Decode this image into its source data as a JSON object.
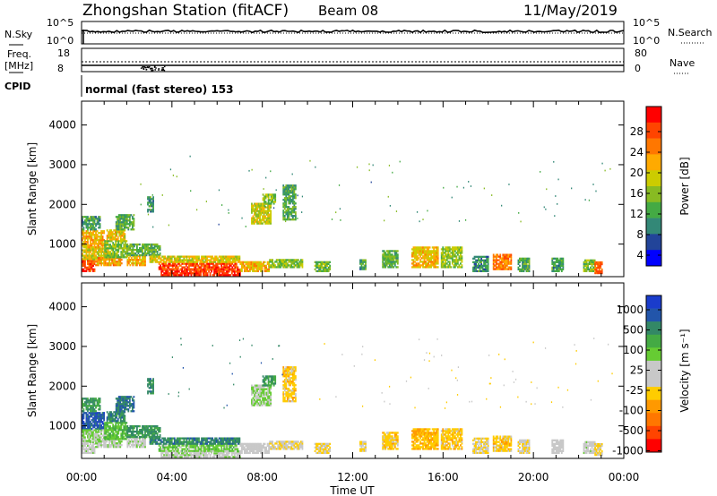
{
  "header": {
    "station": "Zhongshan Station (fitACF)",
    "beam": "Beam 08",
    "date": "11/May/2019"
  },
  "strip": {
    "nsky_label": "N.Sky",
    "nsky_ticks": [
      "10^5",
      "10^0"
    ],
    "nsearch_label": "N.Search",
    "nsearch_ticks": [
      "10^5",
      "10^0"
    ],
    "freq_label": "Freq.",
    "freq_unit": "[MHz]",
    "freq_ticks": [
      "18",
      "8"
    ],
    "nave_label": "Nave",
    "nave_ticks": [
      "80",
      "0"
    ],
    "cpid_label": "CPID",
    "cpid_text": "normal (fast stereo) 153"
  },
  "axes": {
    "ylabel": "Slant Range [km]",
    "xlabel": "Time UT",
    "yticks": [
      "4000",
      "3000",
      "2000",
      "1000"
    ],
    "xticks": [
      "00:00",
      "04:00",
      "08:00",
      "12:00",
      "16:00",
      "20:00",
      "00:00"
    ]
  },
  "power_scale": {
    "title": "Power [dB]",
    "ticks": [
      "28",
      "24",
      "20",
      "16",
      "12",
      "8",
      "4"
    ],
    "colors": [
      "#ff0000",
      "#ff4400",
      "#ff7700",
      "#ffaa00",
      "#cccc00",
      "#88bb22",
      "#44aa44",
      "#338877",
      "#224499",
      "#0000ff"
    ]
  },
  "velocity_scale": {
    "title": "Velocity [m s⁻¹]",
    "ticks": [
      "1000",
      "500",
      "100",
      "25",
      "-25",
      "-100",
      "-500",
      "-1000"
    ],
    "colors": [
      "#1a3ccc",
      "#2255aa",
      "#338866",
      "#44aa44",
      "#66cc33",
      "#c8c8c8",
      "#c8c8c8",
      "#ffcc00",
      "#ff9900",
      "#ff7700",
      "#ff4400",
      "#ff0000"
    ]
  },
  "chart_data": {
    "type": "heatmap",
    "x_range_hours": [
      0,
      24
    ],
    "y_range_km": [
      180,
      4600
    ],
    "panels": [
      {
        "name": "Power [dB]",
        "clim": [
          0,
          32
        ],
        "regions": [
          {
            "t": [
              0.0,
              0.6
            ],
            "r": [
              300,
              600
            ],
            "v": 27
          },
          {
            "t": [
              0.0,
              1.2
            ],
            "r": [
              600,
              900
            ],
            "v": 18
          },
          {
            "t": [
              0.0,
              1.0
            ],
            "r": [
              900,
              1350
            ],
            "v": 20
          },
          {
            "t": [
              0.0,
              0.8
            ],
            "r": [
              1350,
              1700
            ],
            "v": 10
          },
          {
            "t": [
              0.6,
              1.8
            ],
            "r": [
              450,
              650
            ],
            "v": 22
          },
          {
            "t": [
              1.0,
              2.0
            ],
            "r": [
              650,
              1100
            ],
            "v": 14
          },
          {
            "t": [
              1.1,
              1.9
            ],
            "r": [
              1100,
              1350
            ],
            "v": 19
          },
          {
            "t": [
              1.5,
              2.3
            ],
            "r": [
              1350,
              1750
            ],
            "v": 12
          },
          {
            "t": [
              2.0,
              2.8
            ],
            "r": [
              450,
              700
            ],
            "v": 21
          },
          {
            "t": [
              2.0,
              3.5
            ],
            "r": [
              700,
              1000
            ],
            "v": 12
          },
          {
            "t": [
              3.5,
              7.0
            ],
            "r": [
              200,
              350
            ],
            "v": 29
          },
          {
            "t": [
              3.4,
              6.9
            ],
            "r": [
              350,
              530
            ],
            "v": 27
          },
          {
            "t": [
              3.0,
              7.0
            ],
            "r": [
              530,
              680
            ],
            "v": 18
          },
          {
            "t": [
              7.0,
              8.3
            ],
            "r": [
              300,
              550
            ],
            "v": 20
          },
          {
            "t": [
              8.3,
              9.8
            ],
            "r": [
              400,
              620
            ],
            "v": 14
          },
          {
            "t": [
              7.5,
              8.4
            ],
            "r": [
              1500,
              2000
            ],
            "v": 17
          },
          {
            "t": [
              8.0,
              8.6
            ],
            "r": [
              2000,
              2250
            ],
            "v": 14
          },
          {
            "t": [
              8.9,
              9.5
            ],
            "r": [
              1600,
              2500
            ],
            "v": 11
          },
          {
            "t": [
              2.9,
              3.2
            ],
            "r": [
              1800,
              2200
            ],
            "v": 10
          },
          {
            "t": [
              10.3,
              11.0
            ],
            "r": [
              300,
              550
            ],
            "v": 13
          },
          {
            "t": [
              12.3,
              12.6
            ],
            "r": [
              350,
              600
            ],
            "v": 10
          },
          {
            "t": [
              13.3,
              14.0
            ],
            "r": [
              400,
              850
            ],
            "v": 12
          },
          {
            "t": [
              14.6,
              15.8
            ],
            "r": [
              400,
              900
            ],
            "v": 20
          },
          {
            "t": [
              15.9,
              16.8
            ],
            "r": [
              400,
              900
            ],
            "v": 15
          },
          {
            "t": [
              17.3,
              18.0
            ],
            "r": [
              300,
              700
            ],
            "v": 9
          },
          {
            "t": [
              18.2,
              19.0
            ],
            "r": [
              350,
              750
            ],
            "v": 24
          },
          {
            "t": [
              19.3,
              19.8
            ],
            "r": [
              300,
              650
            ],
            "v": 11
          },
          {
            "t": [
              20.8,
              21.3
            ],
            "r": [
              300,
              650
            ],
            "v": 10
          },
          {
            "t": [
              22.2,
              22.7
            ],
            "r": [
              300,
              600
            ],
            "v": 13
          },
          {
            "t": [
              22.7,
              23.0
            ],
            "r": [
              250,
              550
            ],
            "v": 26
          }
        ]
      },
      {
        "name": "Velocity [m s-1]",
        "clim": [
          -1200,
          1200
        ],
        "regions": [
          {
            "t": [
              0.0,
              1.0
            ],
            "r": [
              900,
              1350
            ],
            "v": 900
          },
          {
            "t": [
              0.0,
              0.6
            ],
            "r": [
              300,
              600
            ],
            "v": 80
          },
          {
            "t": [
              0.0,
              1.2
            ],
            "r": [
              600,
              900
            ],
            "v": 200
          },
          {
            "t": [
              0.0,
              0.8
            ],
            "r": [
              1350,
              1700
            ],
            "v": 600
          },
          {
            "t": [
              0.6,
              1.8
            ],
            "r": [
              450,
              650
            ],
            "v": 150
          },
          {
            "t": [
              1.0,
              2.0
            ],
            "r": [
              650,
              1100
            ],
            "v": 400
          },
          {
            "t": [
              1.1,
              1.9
            ],
            "r": [
              1100,
              1350
            ],
            "v": 700
          },
          {
            "t": [
              1.5,
              2.3
            ],
            "r": [
              1350,
              1750
            ],
            "v": 800
          },
          {
            "t": [
              2.0,
              2.8
            ],
            "r": [
              450,
              700
            ],
            "v": 120
          },
          {
            "t": [
              2.0,
              3.5
            ],
            "r": [
              700,
              1000
            ],
            "v": 650
          },
          {
            "t": [
              3.5,
              7.0
            ],
            "r": [
              200,
              350
            ],
            "v": 120
          },
          {
            "t": [
              3.4,
              6.9
            ],
            "r": [
              350,
              530
            ],
            "v": 300
          },
          {
            "t": [
              3.0,
              7.0
            ],
            "r": [
              530,
              680
            ],
            "v": 700
          },
          {
            "t": [
              7.0,
              8.3
            ],
            "r": [
              300,
              550
            ],
            "v": 10
          },
          {
            "t": [
              8.3,
              9.8
            ],
            "r": [
              400,
              620
            ],
            "v": -150
          },
          {
            "t": [
              7.5,
              8.4
            ],
            "r": [
              1500,
              2000
            ],
            "v": 200
          },
          {
            "t": [
              8.0,
              8.6
            ],
            "r": [
              2000,
              2250
            ],
            "v": 600
          },
          {
            "t": [
              8.9,
              9.5
            ],
            "r": [
              1600,
              2500
            ],
            "v": -300
          },
          {
            "t": [
              2.9,
              3.2
            ],
            "r": [
              1800,
              2200
            ],
            "v": 700
          },
          {
            "t": [
              10.3,
              11.0
            ],
            "r": [
              300,
              550
            ],
            "v": -200
          },
          {
            "t": [
              12.3,
              12.6
            ],
            "r": [
              350,
              600
            ],
            "v": -200
          },
          {
            "t": [
              13.3,
              14.0
            ],
            "r": [
              400,
              850
            ],
            "v": -300
          },
          {
            "t": [
              14.6,
              15.8
            ],
            "r": [
              400,
              900
            ],
            "v": -350
          },
          {
            "t": [
              15.9,
              16.8
            ],
            "r": [
              400,
              900
            ],
            "v": -300
          },
          {
            "t": [
              17.3,
              18.0
            ],
            "r": [
              300,
              700
            ],
            "v": -200
          },
          {
            "t": [
              18.2,
              19.0
            ],
            "r": [
              350,
              750
            ],
            "v": -300
          },
          {
            "t": [
              19.3,
              19.8
            ],
            "r": [
              300,
              650
            ],
            "v": -150
          },
          {
            "t": [
              20.8,
              21.3
            ],
            "r": [
              300,
              650
            ],
            "v": 0
          },
          {
            "t": [
              22.2,
              22.7
            ],
            "r": [
              300,
              600
            ],
            "v": 60
          },
          {
            "t": [
              22.7,
              23.0
            ],
            "r": [
              250,
              550
            ],
            "v": -250
          }
        ]
      }
    ]
  }
}
